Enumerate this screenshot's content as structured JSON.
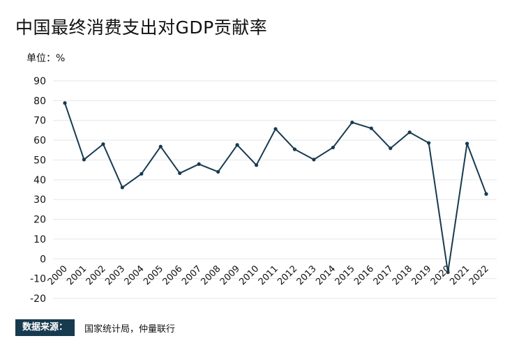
{
  "title": "中国最终消费支出对GDP贡献率",
  "unit_label": "单位：%",
  "source": {
    "label": "数据来源：",
    "text": "国家统计局，仲量联行"
  },
  "colors": {
    "line": "#173a4f",
    "grid": "#e3e6ea",
    "source_bg": "#173a4f"
  },
  "chart_data": {
    "type": "line",
    "title": "中国最终消费支出对GDP贡献率",
    "ylabel": "单位：%",
    "xlabel": "",
    "ylim": [
      -20,
      90
    ],
    "yticks": [
      90,
      80,
      70,
      60,
      50,
      40,
      30,
      20,
      10,
      0,
      -10,
      -20
    ],
    "grid": true,
    "categories": [
      "2000",
      "2001",
      "2002",
      "2003",
      "2004",
      "2005",
      "2006",
      "2007",
      "2008",
      "2009",
      "2010",
      "2011",
      "2012",
      "2013",
      "2014",
      "2015",
      "2016",
      "2017",
      "2018",
      "2019",
      "2020",
      "2021",
      "2022"
    ],
    "series": [
      {
        "values": [
          78.8,
          50.2,
          58.0,
          36.1,
          43.0,
          56.8,
          43.3,
          47.9,
          44.0,
          57.6,
          47.4,
          65.7,
          55.4,
          50.2,
          56.3,
          69.0,
          66.0,
          55.9,
          64.0,
          58.6,
          -6.8,
          58.3,
          32.8
        ]
      }
    ]
  }
}
